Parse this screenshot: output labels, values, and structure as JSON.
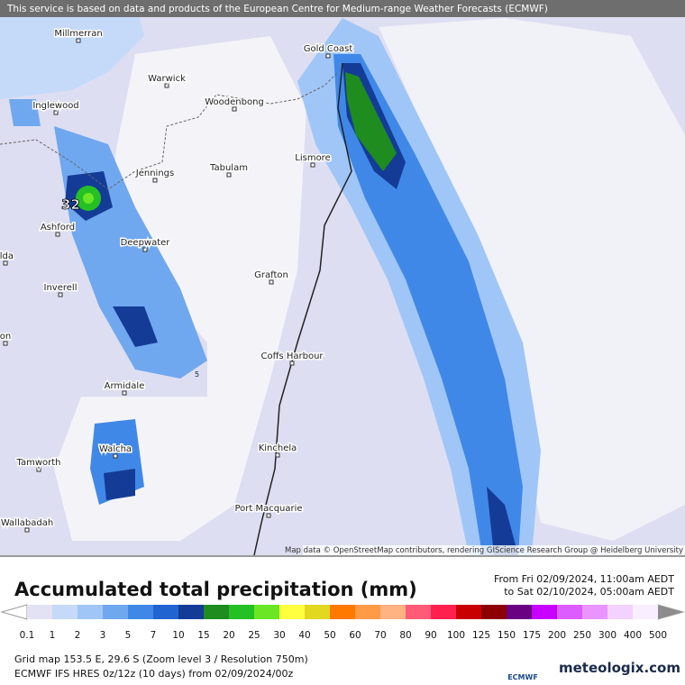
{
  "banner": "This service is based on data and products of the European Centre for Medium-range Weather Forecasts (ECMWF)",
  "places": [
    "Millmerran",
    "Warwick",
    "Gold Coast",
    "Inglewood",
    "Woodenbong",
    "Lismore",
    "Jennings",
    "Tabulam",
    "Ashford",
    "Deepwater",
    "ilda",
    "Inverell",
    "on",
    "Grafton",
    "Coffs Harbour",
    "Armidale",
    "Walcha",
    "Tamworth",
    "Kinchela",
    "Port Macquarie",
    "Wallabadah"
  ],
  "map_values": [
    "32",
    "5"
  ],
  "attribution": "Map data © OpenStreetMap contributors, rendering GIScience Research Group @ Heidelberg University",
  "legend": {
    "title": "Accumulated total precipitation (mm)",
    "period_from": "From Fri 02/09/2024, 11:00am AEDT",
    "period_to": "to Sat 02/10/2024, 05:00am AEDT",
    "scale_labels": [
      "0.1",
      "1",
      "2",
      "3",
      "5",
      "7",
      "10",
      "15",
      "20",
      "25",
      "30",
      "40",
      "50",
      "60",
      "70",
      "80",
      "90",
      "100",
      "125",
      "150",
      "175",
      "200",
      "250",
      "300",
      "400",
      "500"
    ],
    "colors": [
      "#e2e2f4",
      "#c4daf8",
      "#a0c6f8",
      "#70a8f0",
      "#4088e8",
      "#2064d2",
      "#143c96",
      "#1e8c1e",
      "#24c024",
      "#6ae624",
      "#ffff40",
      "#e2d820",
      "#ff7800",
      "#ff9a46",
      "#ffb282",
      "#ff5a78",
      "#ff2050",
      "#c80000",
      "#8c0000",
      "#6a0082",
      "#c800ff",
      "#dc5cff",
      "#ea94ff",
      "#f4d2ff",
      "#f8eeff"
    ],
    "low_color": "#ffffff",
    "high_color": "#8c8c8c"
  },
  "footer": {
    "grid": "Grid map 153.5 E, 29.6 S (Zoom level 3 / Resolution 750m)",
    "model": "ECMWF IFS HRES 0z/12z (10 days) from 02/09/2024/00z",
    "logo_ecmwf": "ECMWF",
    "logo_site": "meteologix.com"
  }
}
